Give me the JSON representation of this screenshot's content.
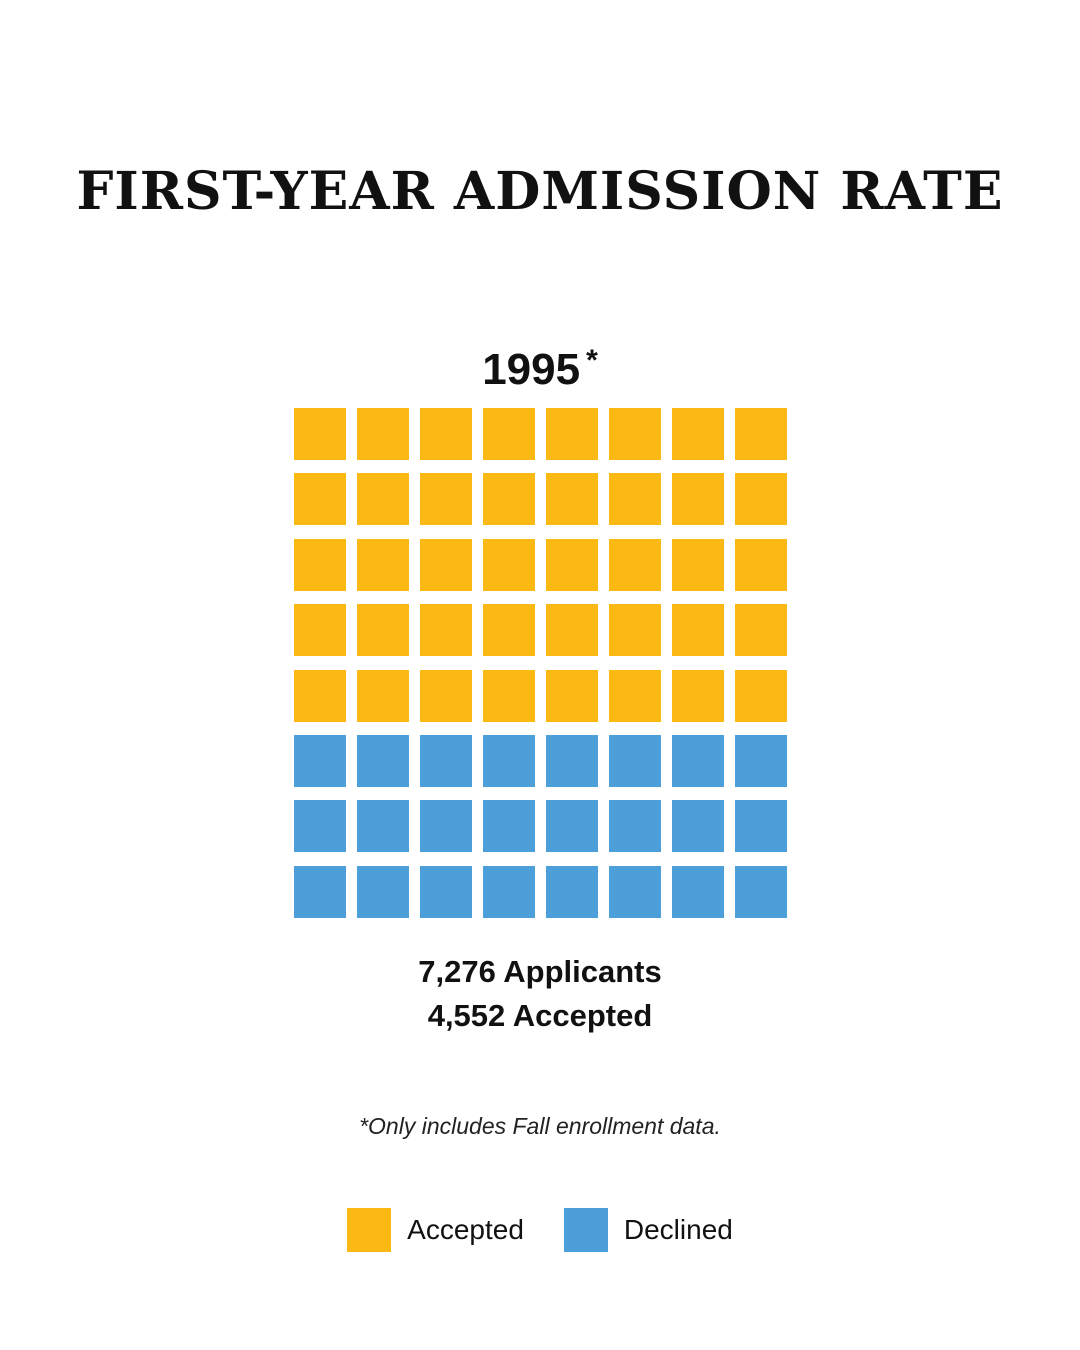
{
  "chart_data": {
    "type": "waffle",
    "title": "FIRST-YEAR ADMISSION RATE",
    "year": "1995",
    "year_mark": "*",
    "rows": 8,
    "columns": 8,
    "series": [
      {
        "name": "Accepted",
        "cells": 40,
        "color": "#FDB913"
      },
      {
        "name": "Declined",
        "cells": 24,
        "color": "#4C9FD8"
      }
    ],
    "stats": [
      "7,276 Applicants",
      "4,552 Accepted"
    ],
    "footnote": "*Only includes Fall enrollment data.",
    "legend_placement": "bottom"
  }
}
